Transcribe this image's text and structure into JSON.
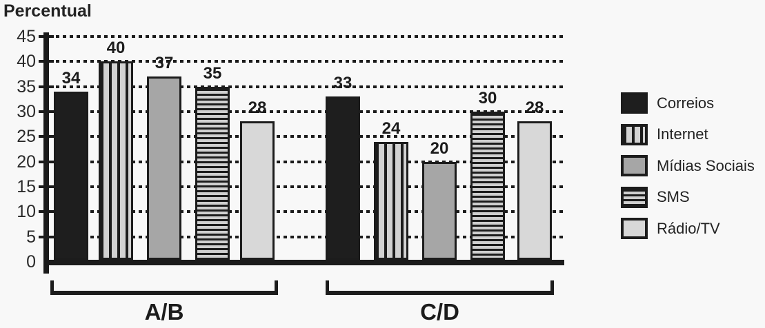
{
  "title": "Percentual",
  "chart_data": {
    "type": "bar",
    "title": "Percentual",
    "categories": [
      "A/B",
      "C/D"
    ],
    "series": [
      {
        "name": "Correios",
        "pattern": "solid",
        "fill": "#1e1e1e",
        "values": [
          34,
          33
        ]
      },
      {
        "name": "Internet",
        "pattern": "vertical-stripes",
        "fill": "#d2d2d2",
        "values": [
          40,
          24
        ]
      },
      {
        "name": "Mídias Sociais",
        "pattern": "solid",
        "fill": "#a6a6a6",
        "values": [
          37,
          20
        ]
      },
      {
        "name": "SMS",
        "pattern": "horizontal-stripes",
        "fill": "#cfcfcf",
        "values": [
          35,
          30
        ]
      },
      {
        "name": "Rádio/TV",
        "pattern": "solid",
        "fill": "#d8d8d8",
        "values": [
          28,
          28
        ]
      }
    ],
    "ylabel": "Percentual",
    "ylim": [
      0,
      45
    ],
    "yticks": [
      0,
      5,
      10,
      15,
      20,
      25,
      30,
      35,
      40,
      45
    ],
    "grid": "dotted-horizontal",
    "legend_position": "right",
    "stroke_color": "#1c1c1c",
    "background_color": "#f8f8f8"
  },
  "legend": {
    "items": [
      "Correios",
      "Internet",
      "Mídias Sociais",
      "SMS",
      "Rádio/TV"
    ]
  }
}
